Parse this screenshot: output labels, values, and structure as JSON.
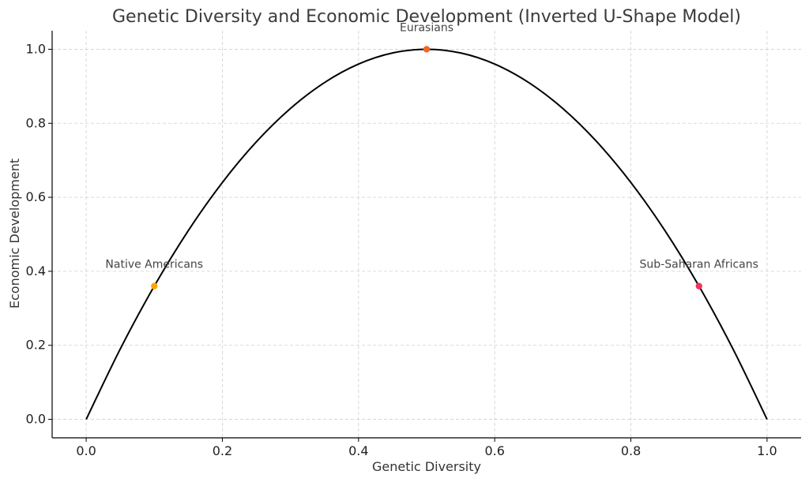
{
  "chart_data": {
    "type": "line",
    "title": "Genetic Diversity and Economic Development (Inverted U-Shape Model)",
    "xlabel": "Genetic Diversity",
    "ylabel": "Economic Development",
    "xlim": [
      -0.05,
      1.05
    ],
    "ylim": [
      -0.05,
      1.05
    ],
    "xticks": [
      0.0,
      0.2,
      0.4,
      0.6,
      0.8,
      1.0
    ],
    "yticks": [
      0.0,
      0.2,
      0.4,
      0.6,
      0.8,
      1.0
    ],
    "xtick_labels": [
      "0.0",
      "0.2",
      "0.4",
      "0.6",
      "0.8",
      "1.0"
    ],
    "ytick_labels": [
      "0.0",
      "0.2",
      "0.4",
      "0.6",
      "0.8",
      "1.0"
    ],
    "grid": true,
    "series": [
      {
        "color": "#000000",
        "x": [
          0.0,
          0.05,
          0.1,
          0.15,
          0.2,
          0.25,
          0.3,
          0.35,
          0.4,
          0.45,
          0.5,
          0.55,
          0.6,
          0.65,
          0.7,
          0.75,
          0.8,
          0.85,
          0.9,
          0.95,
          1.0
        ],
        "y": [
          0.0,
          0.19,
          0.36,
          0.51,
          0.64,
          0.75,
          0.84,
          0.91,
          0.96,
          0.99,
          1.0,
          0.99,
          0.96,
          0.91,
          0.84,
          0.75,
          0.64,
          0.51,
          0.36,
          0.19,
          0.0
        ]
      }
    ],
    "points": [
      {
        "label": "Native Americans",
        "x": 0.1,
        "y": 0.36,
        "color": "#ffa500",
        "label_anchor": "middle"
      },
      {
        "label": "Eurasians",
        "x": 0.5,
        "y": 1.0,
        "color": "#f26522",
        "label_anchor": "middle"
      },
      {
        "label": "Sub-Saharan Africans",
        "x": 0.9,
        "y": 0.36,
        "color": "#f0335a",
        "label_anchor": "middle"
      }
    ]
  }
}
